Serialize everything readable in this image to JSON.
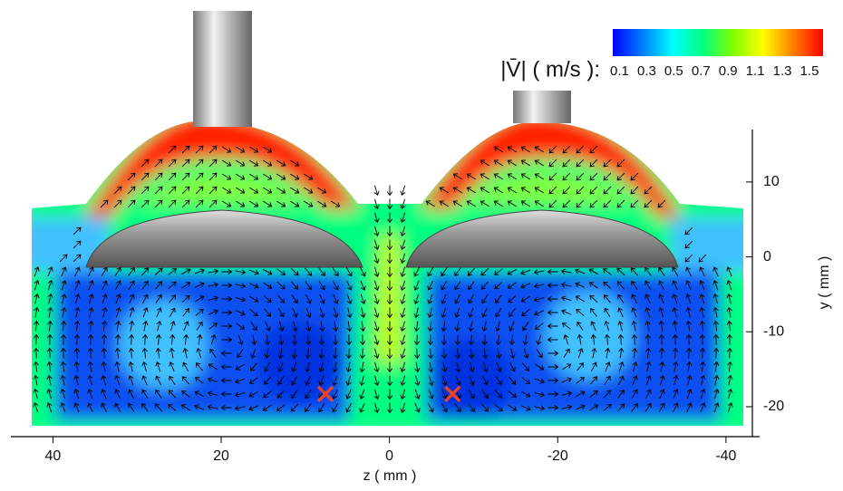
{
  "chart_data": {
    "type": "vector-field",
    "xlabel": "z ( mm )",
    "ylabel": "y ( mm )",
    "xlim": [
      45,
      -44
    ],
    "xticks": [
      40,
      20,
      0,
      -20,
      -40
    ],
    "ylim": [
      -24,
      17
    ],
    "yticks": [
      10,
      0,
      -10,
      -20
    ],
    "colorbar_label": "|V̄| ( m/s ):",
    "clim": [
      0.05,
      1.6
    ],
    "colorbar_ticks": [
      0.1,
      0.3,
      0.5,
      0.7,
      0.9,
      1.1,
      1.3,
      1.5
    ],
    "colormap": [
      "#0000ff",
      "#0080ff",
      "#00ffff",
      "#00ff80",
      "#80ff00",
      "#ffff00",
      "#ff8000",
      "#ff0000"
    ],
    "markers": {
      "x": [
        7.6,
        -7.5
      ],
      "y": [
        -18.3,
        -18.3
      ],
      "color": "#e8412c"
    }
  }
}
